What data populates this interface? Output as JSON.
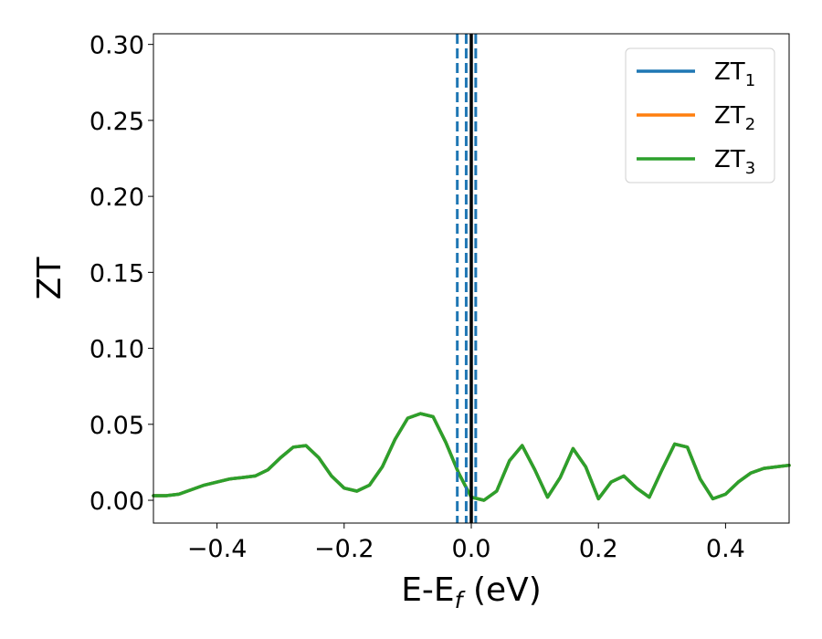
{
  "chart_data": {
    "type": "line",
    "xlabel": "E-E",
    "xlabel_sub": "f",
    "xlabel_unit": "(eV)",
    "ylabel": "ZT",
    "xlim": [
      -0.5,
      0.5
    ],
    "ylim": [
      -0.015,
      0.307
    ],
    "xticks": [
      -0.4,
      -0.2,
      0.0,
      0.2,
      0.4
    ],
    "xtick_labels": [
      "−0.4",
      "−0.2",
      "0.0",
      "0.2",
      "0.4"
    ],
    "yticks": [
      0.0,
      0.05,
      0.1,
      0.15,
      0.2,
      0.25,
      0.3
    ],
    "ytick_labels": [
      "0.00",
      "0.05",
      "0.10",
      "0.15",
      "0.20",
      "0.25",
      "0.30"
    ],
    "grid": false,
    "legend_position": "top-right",
    "x": [
      -0.5,
      -0.48,
      -0.46,
      -0.44,
      -0.42,
      -0.4,
      -0.38,
      -0.36,
      -0.34,
      -0.32,
      -0.3,
      -0.28,
      -0.26,
      -0.24,
      -0.22,
      -0.2,
      -0.18,
      -0.16,
      -0.14,
      -0.12,
      -0.1,
      -0.08,
      -0.06,
      -0.04,
      -0.02,
      0.0,
      0.02,
      0.04,
      0.06,
      0.08,
      0.1,
      0.12,
      0.14,
      0.16,
      0.18,
      0.2,
      0.22,
      0.24,
      0.26,
      0.28,
      0.3,
      0.32,
      0.34,
      0.36,
      0.38,
      0.4,
      0.42,
      0.44,
      0.46,
      0.48,
      0.5
    ],
    "series": [
      {
        "name": "ZT",
        "sub": "1",
        "color": "#1f77b4",
        "values": [
          0.003,
          0.003,
          0.004,
          0.007,
          0.01,
          0.012,
          0.014,
          0.015,
          0.016,
          0.02,
          0.028,
          0.035,
          0.036,
          0.028,
          0.016,
          0.008,
          0.006,
          0.01,
          0.022,
          0.04,
          0.054,
          0.057,
          0.055,
          0.038,
          0.018,
          0.002,
          0.0,
          0.006,
          0.026,
          0.036,
          0.02,
          0.002,
          0.015,
          0.034,
          0.022,
          0.001,
          0.012,
          0.016,
          0.008,
          0.002,
          0.02,
          0.037,
          0.035,
          0.014,
          0.001,
          0.004,
          0.012,
          0.018,
          0.021,
          0.022,
          0.023
        ]
      },
      {
        "name": "ZT",
        "sub": "2",
        "color": "#ff7f0e",
        "values": [
          0.003,
          0.003,
          0.004,
          0.007,
          0.01,
          0.012,
          0.014,
          0.015,
          0.016,
          0.02,
          0.028,
          0.035,
          0.036,
          0.028,
          0.016,
          0.008,
          0.006,
          0.01,
          0.022,
          0.04,
          0.054,
          0.057,
          0.055,
          0.038,
          0.018,
          0.002,
          0.0,
          0.006,
          0.026,
          0.036,
          0.02,
          0.002,
          0.015,
          0.034,
          0.022,
          0.001,
          0.012,
          0.016,
          0.008,
          0.002,
          0.02,
          0.037,
          0.035,
          0.014,
          0.001,
          0.004,
          0.012,
          0.018,
          0.021,
          0.022,
          0.023
        ]
      },
      {
        "name": "ZT",
        "sub": "3",
        "color": "#2ca02c",
        "values": [
          0.003,
          0.003,
          0.004,
          0.007,
          0.01,
          0.012,
          0.014,
          0.015,
          0.016,
          0.02,
          0.028,
          0.035,
          0.036,
          0.028,
          0.016,
          0.008,
          0.006,
          0.01,
          0.022,
          0.04,
          0.054,
          0.057,
          0.055,
          0.038,
          0.018,
          0.002,
          0.0,
          0.006,
          0.026,
          0.036,
          0.02,
          0.002,
          0.015,
          0.034,
          0.022,
          0.001,
          0.012,
          0.016,
          0.008,
          0.002,
          0.02,
          0.037,
          0.035,
          0.014,
          0.001,
          0.004,
          0.012,
          0.018,
          0.021,
          0.022,
          0.023
        ]
      }
    ],
    "vlines": [
      {
        "x": -0.022,
        "style": "dashed",
        "color": "#1f77b4"
      },
      {
        "x": -0.008,
        "style": "dashed",
        "color": "#1f77b4"
      },
      {
        "x": 0.007,
        "style": "dashed",
        "color": "#1f77b4"
      },
      {
        "x": 0.0,
        "style": "solid",
        "color": "#000000"
      }
    ]
  }
}
